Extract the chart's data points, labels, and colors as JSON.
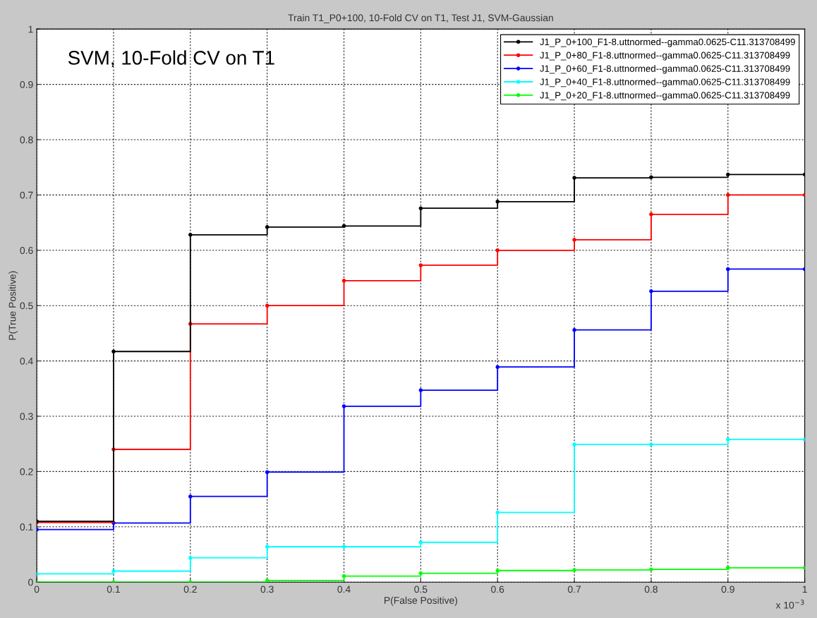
{
  "chart_data": {
    "type": "step",
    "title": "Train T1_P0+100, 10-Fold CV on T1, Test J1, SVM-Gaussian",
    "xlabel": "P(False Positive)",
    "ylabel": "P(True Positive)",
    "annotations": [
      "SVM, 10-Fold CV on T1",
      "x 10$^{−3}$"
    ],
    "x": [
      0,
      0.1,
      0.2,
      0.3,
      0.4,
      0.5,
      0.6,
      0.7,
      0.8,
      0.9,
      1.0
    ],
    "series": [
      {
        "name": "J1_P_0+100_F1-8.uttnormed--gamma0.0625-C11.313708499",
        "color": "#000000",
        "values": [
          0.11,
          0.417,
          0.628,
          0.642,
          0.644,
          0.676,
          0.688,
          0.731,
          0.732,
          0.737,
          0.737
        ]
      },
      {
        "name": "J1_P_0+80_F1-8.uttnormed--gamma0.0625-C11.313708499",
        "color": "#ff0000",
        "values": [
          0.108,
          0.24,
          0.467,
          0.5,
          0.545,
          0.573,
          0.6,
          0.619,
          0.665,
          0.7,
          0.7
        ]
      },
      {
        "name": "J1_P_0+60_F1-8.uttnormed--gamma0.0625-C11.313708499",
        "color": "#0000ff",
        "values": [
          0.095,
          0.107,
          0.155,
          0.199,
          0.318,
          0.347,
          0.389,
          0.456,
          0.526,
          0.566,
          0.566
        ]
      },
      {
        "name": "J1_P_0+40_F1-8.uttnormed--gamma0.0625-C11.313708499",
        "color": "#00ffff",
        "values": [
          0.015,
          0.02,
          0.044,
          0.064,
          0.064,
          0.072,
          0.126,
          0.249,
          0.249,
          0.258,
          0.258
        ]
      },
      {
        "name": "J1_P_0+20_F1-8.uttnormed--gamma0.0625-C11.313708499",
        "color": "#00ff00",
        "values": [
          0.0,
          0.0,
          0.0,
          0.003,
          0.011,
          0.016,
          0.021,
          0.022,
          0.023,
          0.026,
          0.026
        ]
      }
    ],
    "xlim": [
      0,
      1
    ],
    "ylim": [
      0,
      1
    ],
    "xticks": [
      0,
      0.1,
      0.2,
      0.3,
      0.4,
      0.5,
      0.6,
      0.7,
      0.8,
      0.9,
      1
    ],
    "yticks": [
      0,
      0.1,
      0.2,
      0.3,
      0.4,
      0.5,
      0.6,
      0.7,
      0.8,
      0.9,
      1
    ],
    "grid": true,
    "legend": "top right",
    "marker": "circle",
    "line_style": "solid"
  }
}
